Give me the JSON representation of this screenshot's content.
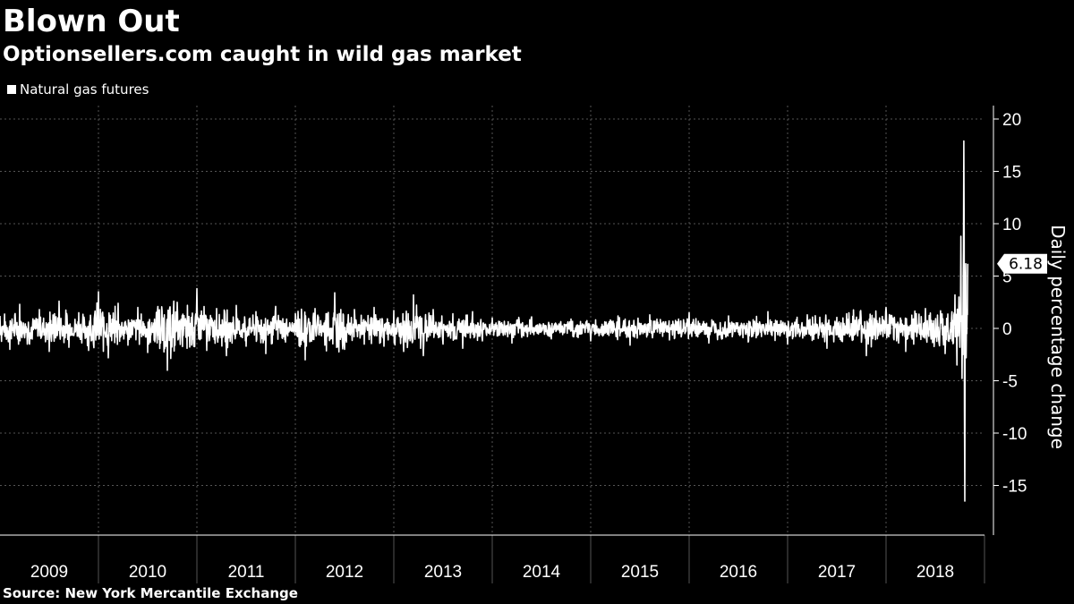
{
  "header": {
    "title": "Blown Out",
    "subtitle": "Optionsellers.com caught in wild gas market"
  },
  "legend": {
    "label": "Natural gas futures"
  },
  "source": "Source: New York Mercantile Exchange",
  "colors": {
    "background": "#000000",
    "series": "#ffffff",
    "grid": "#555555"
  },
  "chart_data": {
    "type": "line",
    "title": "Blown Out",
    "subtitle": "Optionsellers.com caught in wild gas market",
    "xlabel": "",
    "ylabel": "Daily percentage change",
    "x_categories": [
      "2009",
      "2010",
      "2011",
      "2012",
      "2013",
      "2014",
      "2015",
      "2016",
      "2017",
      "2018"
    ],
    "xlim": [
      2009.0,
      2019.0
    ],
    "ylim": [
      -20,
      21
    ],
    "yticks": [
      20,
      15,
      10,
      5,
      0,
      -5,
      -10,
      -15
    ],
    "grid": true,
    "legend_position": "top-left",
    "series": [
      {
        "name": "Natural gas futures",
        "color": "#ffffff",
        "x": [
          2009.0,
          2009.1,
          2009.2,
          2009.3,
          2009.4,
          2009.5,
          2009.6,
          2009.7,
          2009.8,
          2009.9,
          2010.0,
          2010.1,
          2010.2,
          2010.3,
          2010.4,
          2010.5,
          2010.6,
          2010.7,
          2010.8,
          2010.9,
          2011.0,
          2011.1,
          2011.2,
          2011.3,
          2011.4,
          2011.5,
          2011.6,
          2011.7,
          2011.8,
          2011.9,
          2012.0,
          2012.1,
          2012.2,
          2012.3,
          2012.4,
          2012.5,
          2012.6,
          2012.7,
          2012.8,
          2012.9,
          2013.0,
          2013.1,
          2013.2,
          2013.3,
          2013.4,
          2013.5,
          2013.6,
          2013.7,
          2013.8,
          2013.9,
          2014.0,
          2014.2,
          2014.4,
          2014.6,
          2014.8,
          2015.0,
          2015.2,
          2015.4,
          2015.6,
          2015.8,
          2016.0,
          2016.2,
          2016.4,
          2016.6,
          2016.8,
          2017.0,
          2017.2,
          2017.4,
          2017.6,
          2017.8,
          2018.0,
          2018.2,
          2018.4,
          2018.6,
          2018.7,
          2018.72,
          2018.74,
          2018.75,
          2018.76,
          2018.78,
          2018.79,
          2018.8,
          2018.81,
          2018.82,
          2018.83
        ],
        "values": [
          1.2,
          -2.0,
          2.3,
          -1.5,
          1.8,
          -2.2,
          2.6,
          -1.8,
          1.5,
          -2.1,
          3.5,
          -2.8,
          2.4,
          -1.6,
          2.0,
          -2.3,
          1.7,
          -4.0,
          2.5,
          -1.9,
          3.8,
          -2.1,
          1.9,
          -2.6,
          2.2,
          -1.7,
          1.6,
          -2.4,
          2.1,
          -1.3,
          1.4,
          -3.0,
          1.9,
          -1.6,
          3.4,
          -2.0,
          1.8,
          -1.5,
          2.0,
          -1.7,
          1.7,
          -2.2,
          3.2,
          -2.6,
          1.8,
          -1.5,
          1.4,
          -1.9,
          1.6,
          -1.2,
          1.0,
          -1.4,
          1.1,
          -1.0,
          0.9,
          -1.2,
          0.8,
          -1.6,
          1.3,
          -1.1,
          1.5,
          -1.4,
          1.2,
          -1.3,
          1.6,
          -1.5,
          1.3,
          -1.9,
          1.4,
          -2.6,
          2.0,
          -2.2,
          1.9,
          -2.4,
          3.2,
          -3.5,
          3.0,
          -1.8,
          8.8,
          -2.5,
          17.9,
          -16.5,
          6.18,
          -0.5,
          6.18
        ]
      }
    ],
    "last_value_label": "6.18"
  }
}
